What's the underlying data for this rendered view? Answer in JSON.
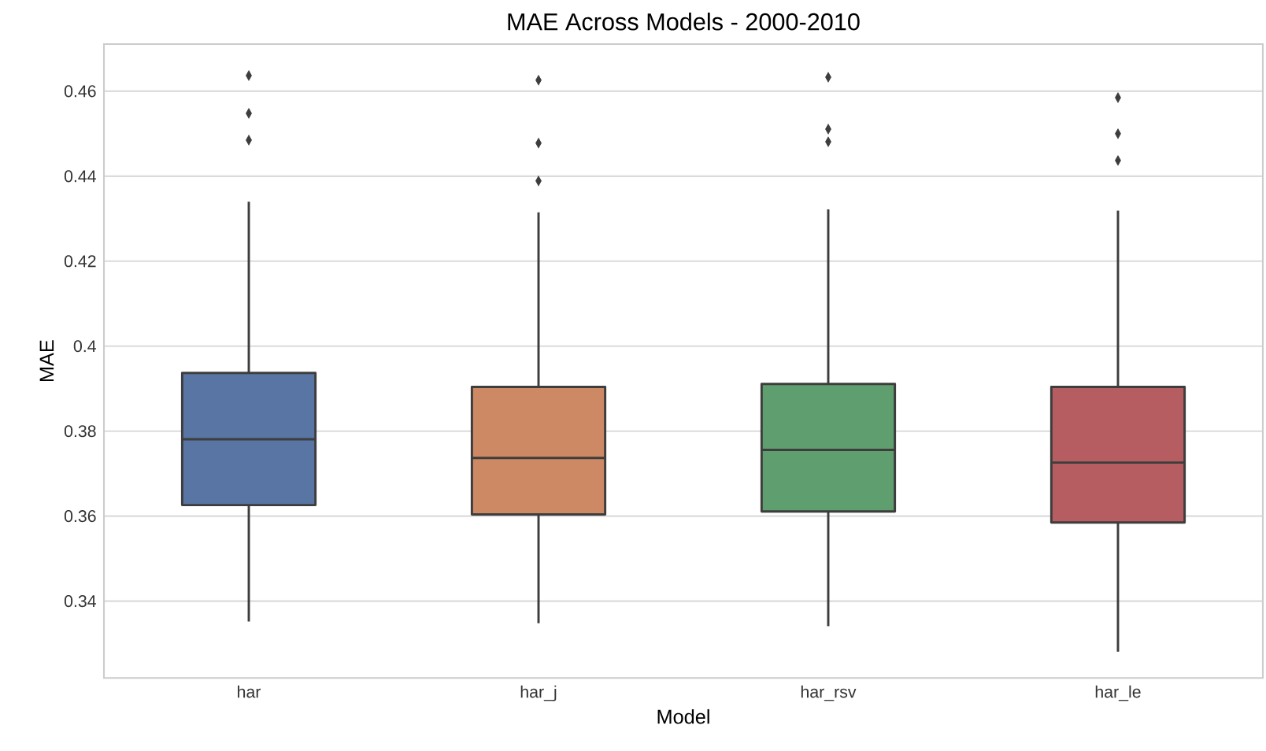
{
  "chart_data": {
    "type": "box",
    "title": "MAE Across Models - 2000-2010",
    "xlabel": "Model",
    "ylabel": "MAE",
    "categories": [
      "har",
      "har_j",
      "har_rsv",
      "har_le"
    ],
    "colors": [
      "#5875a4",
      "#cc8963",
      "#5f9e6e",
      "#b55d60"
    ],
    "boxes": [
      {
        "low": 0.3352,
        "q1": 0.3626,
        "median": 0.3781,
        "q3": 0.3937,
        "high": 0.434,
        "outliers": [
          0.4485,
          0.4548,
          0.4637
        ]
      },
      {
        "low": 0.3348,
        "q1": 0.3604,
        "median": 0.3737,
        "q3": 0.3904,
        "high": 0.4315,
        "outliers": [
          0.4389,
          0.4478,
          0.4626
        ]
      },
      {
        "low": 0.3341,
        "q1": 0.3611,
        "median": 0.3756,
        "q3": 0.3911,
        "high": 0.4322,
        "outliers": [
          0.4481,
          0.4511,
          0.4633
        ]
      },
      {
        "low": 0.3281,
        "q1": 0.3585,
        "median": 0.3726,
        "q3": 0.3904,
        "high": 0.4319,
        "outliers": [
          0.4437,
          0.45,
          0.4585
        ]
      }
    ],
    "ylim": [
      0.3219,
      0.4711
    ],
    "yticks": [
      0.34,
      0.36,
      0.38,
      0.4,
      0.42,
      0.44,
      0.46
    ],
    "grid": "y",
    "marker": "diamond"
  }
}
